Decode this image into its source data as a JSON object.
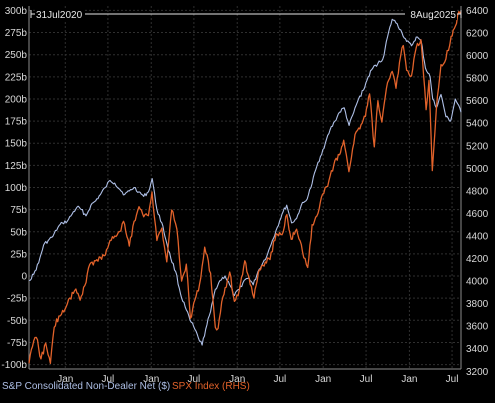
{
  "colors": {
    "background": "#000000",
    "grid": "#2f2f2f",
    "axis": "#8c8c8c",
    "text": "#d9d9d9",
    "series_blue": "#aebfe6",
    "series_orange": "#e2622a"
  },
  "chart_data": {
    "type": "line",
    "grid": true,
    "legend_placement": "bottom-left",
    "date_range": {
      "start_label": "31Jul2020",
      "end_label": "8Aug2025"
    },
    "x_ticks": [
      "Jan",
      "Jul",
      "Jan",
      "Jul",
      "Jan",
      "Jul",
      "Jan",
      "Jul",
      "Jan",
      "Jul"
    ],
    "x_tick_dates": [
      "2021-01-01",
      "2021-07-01",
      "2022-01-01",
      "2022-07-01",
      "2023-01-01",
      "2023-07-01",
      "2024-01-01",
      "2024-07-01",
      "2025-01-01",
      "2025-07-01"
    ],
    "xlim": [
      "2020-07-31",
      "2025-08-08"
    ],
    "left_axis": {
      "ylim": [
        -105,
        305
      ],
      "ticks": [
        -100,
        -75,
        -50,
        -25,
        0,
        25,
        50,
        75,
        100,
        125,
        150,
        175,
        200,
        225,
        250,
        275,
        300
      ],
      "tick_labels": [
        "-100b",
        "-75b",
        "-50b",
        "-25b",
        "0",
        "25b",
        "50b",
        "75b",
        "100b",
        "125b",
        "150b",
        "175b",
        "200b",
        "225b",
        "250b",
        "275b",
        "300b"
      ]
    },
    "right_axis": {
      "ylim": [
        3220,
        6440
      ],
      "ticks": [
        3200,
        3400,
        3600,
        3800,
        4000,
        4200,
        4400,
        4600,
        4800,
        5000,
        5200,
        5400,
        5600,
        5800,
        6000,
        6200,
        6400
      ],
      "tick_labels": [
        "3200",
        "3400",
        "3600",
        "3800",
        "4000",
        "4200",
        "4400",
        "4600",
        "4800",
        "5000",
        "5200",
        "5400",
        "5600",
        "5800",
        "6000",
        "6200",
        "6400"
      ]
    },
    "series": [
      {
        "name": "S&P Consolidated Non-Dealer Net ($)",
        "axis": "left",
        "color": "#aebfe6",
        "points": [
          [
            "2020-07-31",
            -5
          ],
          [
            "2020-08-20",
            2
          ],
          [
            "2020-09-10",
            15
          ],
          [
            "2020-10-01",
            35
          ],
          [
            "2020-10-20",
            40
          ],
          [
            "2020-11-10",
            45
          ],
          [
            "2020-12-01",
            55
          ],
          [
            "2020-12-20",
            60
          ],
          [
            "2021-01-10",
            62
          ],
          [
            "2021-01-30",
            70
          ],
          [
            "2021-02-20",
            78
          ],
          [
            "2021-03-10",
            75
          ],
          [
            "2021-03-30",
            68
          ],
          [
            "2021-04-20",
            80
          ],
          [
            "2021-05-10",
            85
          ],
          [
            "2021-05-30",
            92
          ],
          [
            "2021-06-20",
            100
          ],
          [
            "2021-07-10",
            108
          ],
          [
            "2021-07-30",
            105
          ],
          [
            "2021-08-20",
            98
          ],
          [
            "2021-09-10",
            92
          ],
          [
            "2021-09-30",
            96
          ],
          [
            "2021-10-20",
            100
          ],
          [
            "2021-11-10",
            95
          ],
          [
            "2021-11-30",
            90
          ],
          [
            "2021-12-20",
            95
          ],
          [
            "2022-01-05",
            110
          ],
          [
            "2022-01-25",
            75
          ],
          [
            "2022-02-15",
            60
          ],
          [
            "2022-03-05",
            40
          ],
          [
            "2022-03-25",
            20
          ],
          [
            "2022-04-15",
            5
          ],
          [
            "2022-05-05",
            -20
          ],
          [
            "2022-05-25",
            -35
          ],
          [
            "2022-06-15",
            -50
          ],
          [
            "2022-07-05",
            -60
          ],
          [
            "2022-07-20",
            -70
          ],
          [
            "2022-08-05",
            -78
          ],
          [
            "2022-08-20",
            -60
          ],
          [
            "2022-09-10",
            -40
          ],
          [
            "2022-09-30",
            -15
          ],
          [
            "2022-10-20",
            -5
          ],
          [
            "2022-11-10",
            0
          ],
          [
            "2022-11-30",
            -10
          ],
          [
            "2022-12-20",
            -22
          ],
          [
            "2023-01-10",
            -15
          ],
          [
            "2023-01-30",
            -5
          ],
          [
            "2023-02-20",
            -2
          ],
          [
            "2023-03-10",
            -10
          ],
          [
            "2023-03-30",
            5
          ],
          [
            "2023-04-20",
            15
          ],
          [
            "2023-05-10",
            25
          ],
          [
            "2023-05-30",
            40
          ],
          [
            "2023-06-20",
            55
          ],
          [
            "2023-07-10",
            70
          ],
          [
            "2023-07-30",
            80
          ],
          [
            "2023-08-20",
            60
          ],
          [
            "2023-09-10",
            65
          ],
          [
            "2023-09-30",
            80
          ],
          [
            "2023-10-20",
            85
          ],
          [
            "2023-11-10",
            100
          ],
          [
            "2023-11-30",
            120
          ],
          [
            "2023-12-20",
            135
          ],
          [
            "2024-01-10",
            150
          ],
          [
            "2024-01-30",
            165
          ],
          [
            "2024-02-20",
            175
          ],
          [
            "2024-03-10",
            185
          ],
          [
            "2024-03-30",
            190
          ],
          [
            "2024-04-20",
            170
          ],
          [
            "2024-05-10",
            185
          ],
          [
            "2024-05-30",
            200
          ],
          [
            "2024-06-20",
            210
          ],
          [
            "2024-07-10",
            225
          ],
          [
            "2024-07-30",
            235
          ],
          [
            "2024-08-20",
            240
          ],
          [
            "2024-09-10",
            245
          ],
          [
            "2024-09-30",
            270
          ],
          [
            "2024-10-20",
            290
          ],
          [
            "2024-11-10",
            285
          ],
          [
            "2024-11-30",
            275
          ],
          [
            "2024-12-20",
            265
          ],
          [
            "2025-01-10",
            260
          ],
          [
            "2025-01-30",
            270
          ],
          [
            "2025-02-20",
            265
          ],
          [
            "2025-03-10",
            235
          ],
          [
            "2025-03-30",
            225
          ],
          [
            "2025-04-10",
            200
          ],
          [
            "2025-04-25",
            190
          ],
          [
            "2025-05-15",
            205
          ],
          [
            "2025-06-05",
            180
          ],
          [
            "2025-06-25",
            175
          ],
          [
            "2025-07-15",
            200
          ],
          [
            "2025-08-08",
            185
          ]
        ]
      },
      {
        "name": "SPX Index (RHS)",
        "axis": "right",
        "color": "#e2622a",
        "points": [
          [
            "2020-07-31",
            3270
          ],
          [
            "2020-08-15",
            3420
          ],
          [
            "2020-08-31",
            3500
          ],
          [
            "2020-09-20",
            3310
          ],
          [
            "2020-10-10",
            3450
          ],
          [
            "2020-10-30",
            3270
          ],
          [
            "2020-11-15",
            3590
          ],
          [
            "2020-12-05",
            3690
          ],
          [
            "2020-12-31",
            3750
          ],
          [
            "2021-01-20",
            3850
          ],
          [
            "2021-02-15",
            3930
          ],
          [
            "2021-03-05",
            3830
          ],
          [
            "2021-03-25",
            3960
          ],
          [
            "2021-04-15",
            4150
          ],
          [
            "2021-05-10",
            4180
          ],
          [
            "2021-05-30",
            4210
          ],
          [
            "2021-06-20",
            4230
          ],
          [
            "2021-07-10",
            4360
          ],
          [
            "2021-07-30",
            4400
          ],
          [
            "2021-08-20",
            4440
          ],
          [
            "2021-09-05",
            4530
          ],
          [
            "2021-09-30",
            4310
          ],
          [
            "2021-10-20",
            4530
          ],
          [
            "2021-11-10",
            4660
          ],
          [
            "2021-11-30",
            4570
          ],
          [
            "2021-12-20",
            4580
          ],
          [
            "2022-01-04",
            4790
          ],
          [
            "2022-01-25",
            4360
          ],
          [
            "2022-02-15",
            4470
          ],
          [
            "2022-03-08",
            4170
          ],
          [
            "2022-03-29",
            4630
          ],
          [
            "2022-04-20",
            4460
          ],
          [
            "2022-05-10",
            4000
          ],
          [
            "2022-05-30",
            4150
          ],
          [
            "2022-06-16",
            3670
          ],
          [
            "2022-07-05",
            3830
          ],
          [
            "2022-07-25",
            3970
          ],
          [
            "2022-08-16",
            4300
          ],
          [
            "2022-09-10",
            4070
          ],
          [
            "2022-09-30",
            3590
          ],
          [
            "2022-10-12",
            3580
          ],
          [
            "2022-11-01",
            3860
          ],
          [
            "2022-11-30",
            4080
          ],
          [
            "2022-12-20",
            3820
          ],
          [
            "2023-01-10",
            3920
          ],
          [
            "2023-02-02",
            4180
          ],
          [
            "2023-02-25",
            3970
          ],
          [
            "2023-03-13",
            3850
          ],
          [
            "2023-04-05",
            4100
          ],
          [
            "2023-04-30",
            4170
          ],
          [
            "2023-05-20",
            4190
          ],
          [
            "2023-06-15",
            4420
          ],
          [
            "2023-07-10",
            4410
          ],
          [
            "2023-07-31",
            4590
          ],
          [
            "2023-08-18",
            4370
          ],
          [
            "2023-09-10",
            4460
          ],
          [
            "2023-10-05",
            4260
          ],
          [
            "2023-10-27",
            4120
          ],
          [
            "2023-11-15",
            4500
          ],
          [
            "2023-12-10",
            4600
          ],
          [
            "2023-12-29",
            4770
          ],
          [
            "2024-01-20",
            4840
          ],
          [
            "2024-02-15",
            5030
          ],
          [
            "2024-03-10",
            5120
          ],
          [
            "2024-03-28",
            5250
          ],
          [
            "2024-04-19",
            4970
          ],
          [
            "2024-05-15",
            5300
          ],
          [
            "2024-06-05",
            5350
          ],
          [
            "2024-06-28",
            5460
          ],
          [
            "2024-07-16",
            5660
          ],
          [
            "2024-08-05",
            5190
          ],
          [
            "2024-08-20",
            5600
          ],
          [
            "2024-09-06",
            5410
          ],
          [
            "2024-09-30",
            5760
          ],
          [
            "2024-10-20",
            5860
          ],
          [
            "2024-11-05",
            5710
          ],
          [
            "2024-11-25",
            6000
          ],
          [
            "2024-12-06",
            6090
          ],
          [
            "2024-12-20",
            5870
          ],
          [
            "2025-01-10",
            5820
          ],
          [
            "2025-01-30",
            6070
          ],
          [
            "2025-02-19",
            6140
          ],
          [
            "2025-03-13",
            5520
          ],
          [
            "2025-03-25",
            5780
          ],
          [
            "2025-04-08",
            4980
          ],
          [
            "2025-04-25",
            5520
          ],
          [
            "2025-05-15",
            5920
          ],
          [
            "2025-06-05",
            5970
          ],
          [
            "2025-06-27",
            6170
          ],
          [
            "2025-07-15",
            6260
          ],
          [
            "2025-07-30",
            6390
          ],
          [
            "2025-08-08",
            6390
          ]
        ]
      }
    ],
    "legend": [
      {
        "label": "S&P Consolidated Non-Dealer Net ($)",
        "color": "#aebfe6"
      },
      {
        "label": "SPX Index (RHS)",
        "color": "#e2622a"
      }
    ]
  }
}
